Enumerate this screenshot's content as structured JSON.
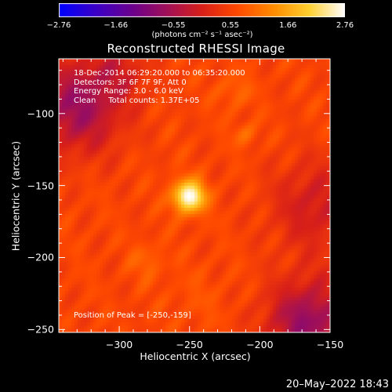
{
  "chart_data": {
    "type": "heatmap",
    "title": "Reconstructed RHESSI Image",
    "xlabel": "Heliocentric X (arcsec)",
    "ylabel": "Heliocentric Y (arcsec)",
    "xlim": [
      -343,
      -150
    ],
    "ylim": [
      -252,
      -62
    ],
    "x_ticks": [
      -300,
      -250,
      -200,
      -150
    ],
    "x_tick_labels": [
      "−300",
      "−250",
      "−200",
      "−150"
    ],
    "y_ticks": [
      -100,
      -150,
      -200,
      -250
    ],
    "y_tick_labels": [
      "−100",
      "−150",
      "−200",
      "−250"
    ],
    "colorbar": {
      "min": -2.76,
      "max": 2.76,
      "ticks": [
        -2.76,
        -1.66,
        -0.55,
        0.55,
        1.66,
        2.76
      ],
      "tick_labels": [
        "−2.76",
        "−1.66",
        "−0.55",
        "0.55",
        "1.66",
        "2.76"
      ],
      "units_text": "(photons cm⁻² s⁻¹ asec⁻²)",
      "colormap": [
        "#0000ff",
        "#3a00c8",
        "#6a0090",
        "#a0105a",
        "#d8201a",
        "#ff4a00",
        "#ff8c00",
        "#ffd030",
        "#ffffff"
      ]
    },
    "info_lines": [
      "18-Dec-2014 06:29:20.000 to 06:35:20.000",
      "Detectors: 3F 6F 7F 9F, Att 0",
      "Energy Range: 3.0 - 6.0 keV",
      "Clean     Total counts: 1.37E+05"
    ],
    "peak_text": "Position of Peak = [-250,-159]",
    "peak": {
      "x": -250,
      "y": -159,
      "value": 2.76
    },
    "background_level": 0.6,
    "sources": [
      {
        "x": -250,
        "y": -158,
        "sigma": 8,
        "amplitude": 2.2
      },
      {
        "x": -210,
        "y": -115,
        "sigma": 6,
        "amplitude": 0.45
      },
      {
        "x": -218,
        "y": -85,
        "sigma": 9,
        "amplitude": 0.35
      },
      {
        "x": -280,
        "y": -203,
        "sigma": 9,
        "amplitude": 0.35
      },
      {
        "x": -245,
        "y": -230,
        "sigma": 16,
        "amplitude": 0.15
      }
    ],
    "dark_regions": [
      {
        "x": -330,
        "y": -95,
        "sigma": 22,
        "amplitude": 1.3
      },
      {
        "x": -165,
        "y": -245,
        "sigma": 20,
        "amplitude": 1.4
      },
      {
        "x": -160,
        "y": -165,
        "sigma": 22,
        "amplitude": 0.7
      },
      {
        "x": -300,
        "y": -70,
        "sigma": 15,
        "amplitude": 0.5
      }
    ],
    "grid": false
  },
  "timestamp": "20–May–2022 18:43"
}
